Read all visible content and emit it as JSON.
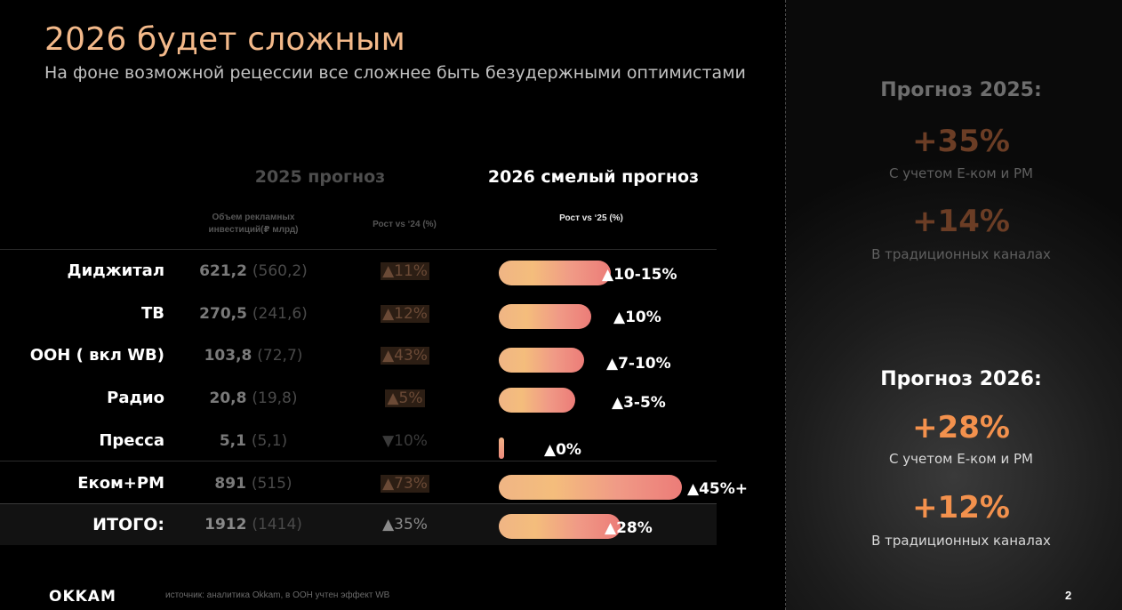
{
  "title": "2026 будет сложным",
  "subtitle": "На фоне возможной рецессии все сложнее быть безудержными оптимистами",
  "table": {
    "header_2025": "2025 прогноз",
    "header_2026": "2026 смелый прогноз",
    "col_volume": "Объем рекламных инвестиций(₽ млрд)",
    "col_growth_25": "Рост vs ‘24 (%)",
    "col_growth_26": "Рост vs ‘25 (%)",
    "rows": [
      {
        "label": "Диджитал",
        "volume": "621,2",
        "prev": "(560,2)",
        "growth_2025": "▲11%",
        "growth_2026": "▲10-15%",
        "bar_level": 0.5
      },
      {
        "label": "ТВ",
        "volume": "270,5",
        "prev": "(241,6)",
        "growth_2025": "▲12%",
        "growth_2026": "▲10%",
        "bar_level": 0.36
      },
      {
        "label": "ООН ( вкл WB)",
        "volume": "103,8",
        "prev": "(72,7)",
        "growth_2025": "▲43%",
        "growth_2026": "▲7-10%",
        "bar_level": 0.31
      },
      {
        "label": "Радио",
        "volume": "20,8",
        "prev": "(19,8)",
        "growth_2025": "▲5%",
        "growth_2026": "▲3-5%",
        "bar_level": 0.25
      },
      {
        "label": "Пресса",
        "volume": "5,1",
        "prev": "(5,1)",
        "growth_2025": "▼10%",
        "growth_2026": "▲0%",
        "bar_level": 0.0
      },
      {
        "label": "Еком+РМ",
        "volume": "891",
        "prev": "(515)",
        "growth_2025": "▲73%",
        "growth_2026": "▲45%+",
        "bar_level": 1.0
      }
    ],
    "total": {
      "label": "ИТОГО:",
      "volume": "1912",
      "prev": "(1414)",
      "growth_2025": "▲35%",
      "growth_2026": "▲28%",
      "bar_level": 0.57
    }
  },
  "forecast_2025": {
    "title": "Прогноз 2025:",
    "value_total": "+35%",
    "note_total": "С учетом Е-ком и РМ",
    "value_trad": "+14%",
    "note_trad": "В традиционных каналах"
  },
  "forecast_2026": {
    "title": "Прогноз 2026:",
    "value_total": "+28%",
    "note_total": "С учетом Е-ком и РМ",
    "value_trad": "+12%",
    "note_trad": "В традиционных каналах"
  },
  "footer": {
    "logo": "OKKAM",
    "source": "источник: аналитика Okkam, в ООН учтен эффект WB",
    "page": "2"
  },
  "colors": {
    "accent": "#f3914d",
    "title": "#f3b98a",
    "bar_start": "#f0b585",
    "bar_end": "#ec7c78"
  }
}
